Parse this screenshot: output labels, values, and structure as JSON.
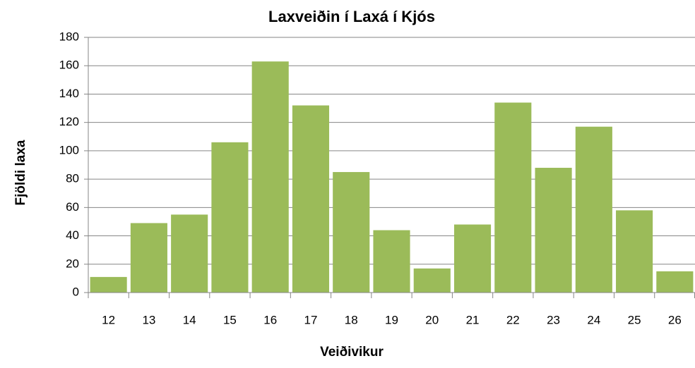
{
  "chart_data": {
    "type": "bar",
    "title": "Laxveiðin í Laxá í Kjós",
    "x_label": "Veiðivikur",
    "y_label": "Fjöldi laxa",
    "categories": [
      "12",
      "13",
      "14",
      "15",
      "16",
      "17",
      "18",
      "19",
      "20",
      "21",
      "22",
      "23",
      "24",
      "25",
      "26"
    ],
    "values": [
      11,
      49,
      55,
      106,
      163,
      132,
      85,
      44,
      17,
      48,
      134,
      88,
      117,
      58,
      15
    ],
    "color": "#9bbb59",
    "ylim": [
      0,
      180
    ],
    "yticks": [
      0,
      20,
      40,
      60,
      80,
      100,
      120,
      140,
      160,
      180
    ],
    "grid": true
  }
}
